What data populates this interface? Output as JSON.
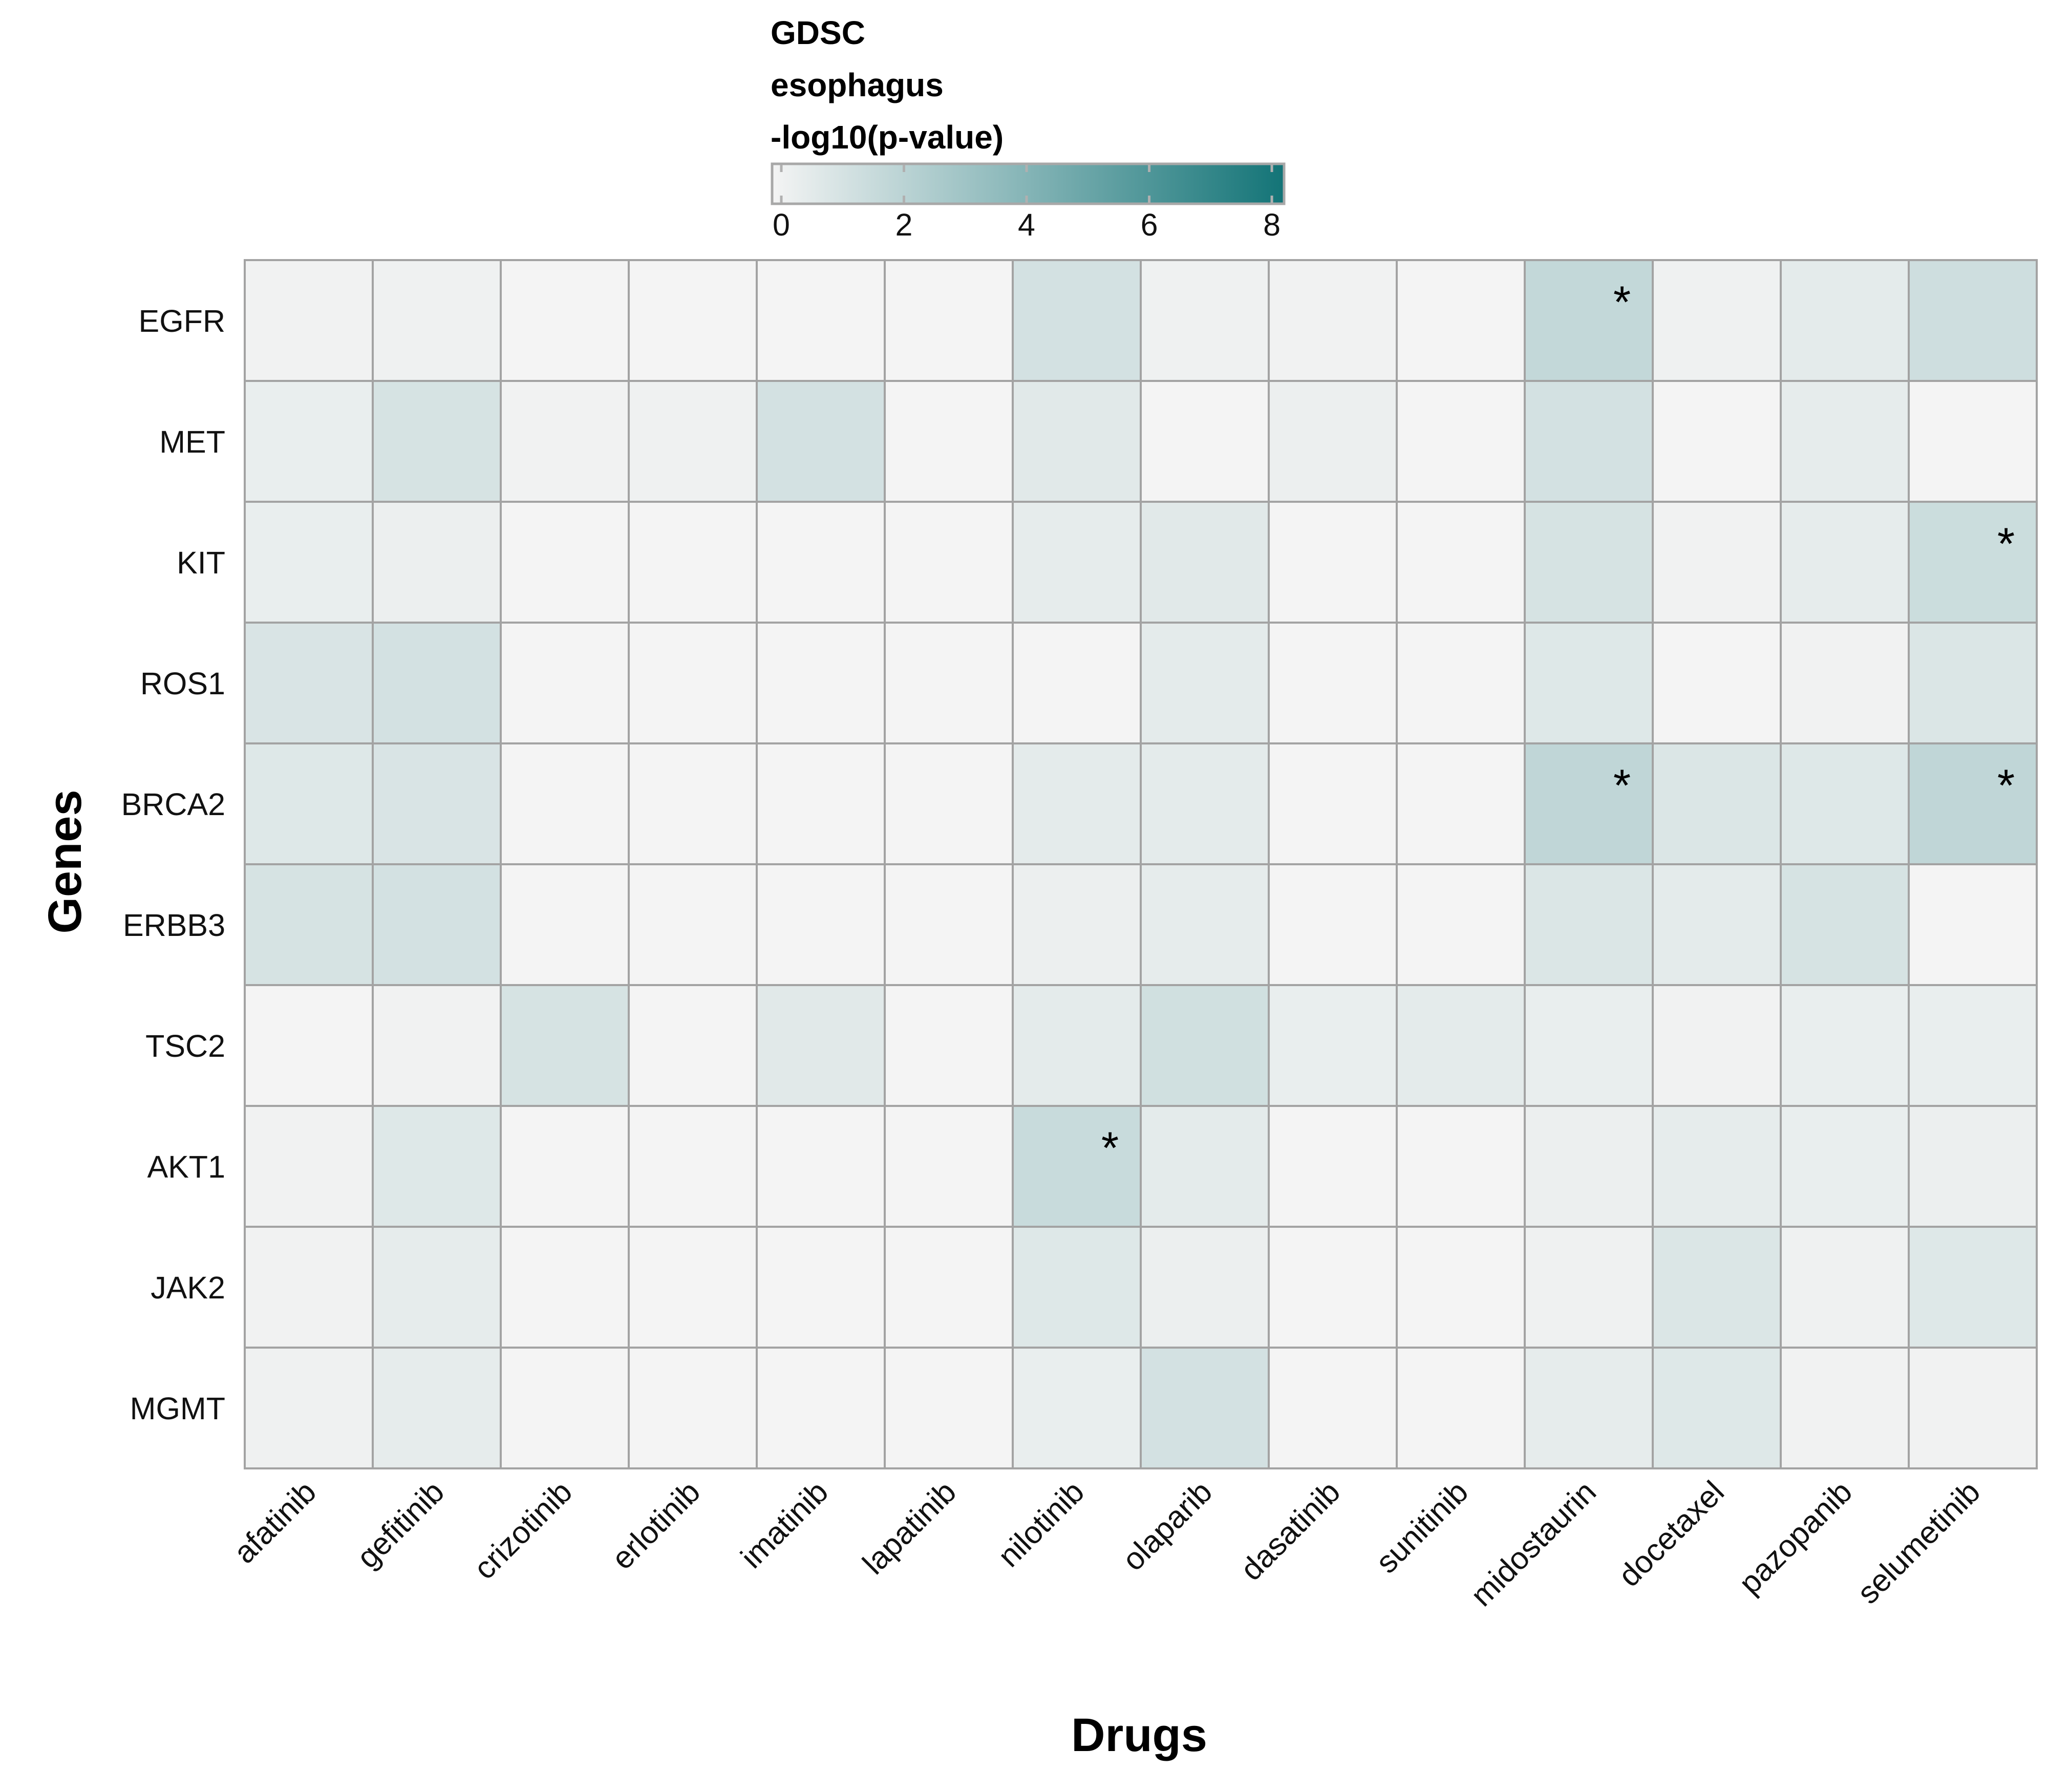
{
  "chart_data": {
    "type": "heatmap",
    "legend": {
      "title_lines": [
        "GDSC",
        "esophagus",
        "-log10(p-value)"
      ],
      "ticks": [
        "0",
        "2",
        "4",
        "6",
        "8"
      ],
      "tick_values": [
        0,
        2,
        4,
        6,
        8
      ],
      "range": [
        0,
        8.2
      ],
      "color_low": "#f4f4f4",
      "color_high": "#137477",
      "placement": "top-center"
    },
    "xlabel": "Drugs",
    "ylabel": "Genes",
    "x_categories": [
      "afatinib",
      "gefitinib",
      "crizotinib",
      "erlotinib",
      "imatinib",
      "lapatinib",
      "nilotinib",
      "olaparib",
      "dasatinib",
      "sunitinib",
      "midostaurin",
      "docetaxel",
      "pazopanib",
      "selumetinib"
    ],
    "y_categories": [
      "EGFR",
      "MET",
      "KIT",
      "ROS1",
      "BRCA2",
      "ERBB3",
      "TSC2",
      "AKT1",
      "JAK2",
      "MGMT"
    ],
    "values": [
      [
        0.1,
        0.2,
        0.0,
        0.0,
        0.0,
        0.0,
        1.2,
        0.2,
        0.1,
        0.0,
        1.8,
        0.2,
        0.6,
        1.4
      ],
      [
        0.4,
        1.1,
        0.1,
        0.2,
        1.2,
        0.0,
        0.7,
        0.0,
        0.3,
        0.0,
        1.2,
        0.0,
        0.5,
        0.0
      ],
      [
        0.4,
        0.3,
        0.0,
        0.0,
        0.0,
        0.0,
        0.5,
        0.7,
        0.0,
        0.0,
        1.1,
        0.1,
        0.5,
        1.5
      ],
      [
        1.0,
        1.2,
        0.0,
        0.0,
        0.0,
        0.0,
        0.0,
        0.6,
        0.0,
        0.0,
        0.8,
        0.0,
        0.1,
        0.9
      ],
      [
        0.8,
        1.0,
        0.0,
        0.0,
        0.0,
        0.0,
        0.6,
        0.6,
        0.0,
        0.0,
        1.9,
        0.9,
        0.8,
        1.9
      ],
      [
        1.1,
        1.2,
        0.0,
        0.0,
        0.0,
        0.0,
        0.3,
        0.5,
        0.0,
        0.0,
        0.9,
        0.6,
        1.1,
        0.0
      ],
      [
        0.0,
        0.1,
        1.1,
        0.0,
        0.7,
        0.0,
        0.6,
        1.3,
        0.4,
        0.6,
        0.4,
        0.1,
        0.4,
        0.4
      ],
      [
        0.1,
        0.8,
        0.0,
        0.0,
        0.0,
        0.0,
        1.6,
        0.6,
        0.0,
        0.0,
        0.3,
        0.5,
        0.4,
        0.3
      ],
      [
        0.1,
        0.5,
        0.0,
        0.0,
        0.0,
        0.0,
        0.8,
        0.3,
        0.0,
        0.0,
        0.2,
        0.9,
        0.2,
        0.8
      ],
      [
        0.2,
        0.5,
        0.0,
        0.0,
        0.0,
        0.0,
        0.4,
        1.2,
        0.0,
        0.0,
        0.5,
        0.8,
        0.1,
        0.1
      ]
    ],
    "significance_mark": "*",
    "significant_cells": [
      {
        "gene": "EGFR",
        "drug": "midostaurin"
      },
      {
        "gene": "KIT",
        "drug": "selumetinib"
      },
      {
        "gene": "BRCA2",
        "drug": "midostaurin"
      },
      {
        "gene": "BRCA2",
        "drug": "selumetinib"
      },
      {
        "gene": "AKT1",
        "drug": "nilotinib"
      }
    ],
    "grid": true,
    "cell_border_color": "#a3a3a3"
  }
}
